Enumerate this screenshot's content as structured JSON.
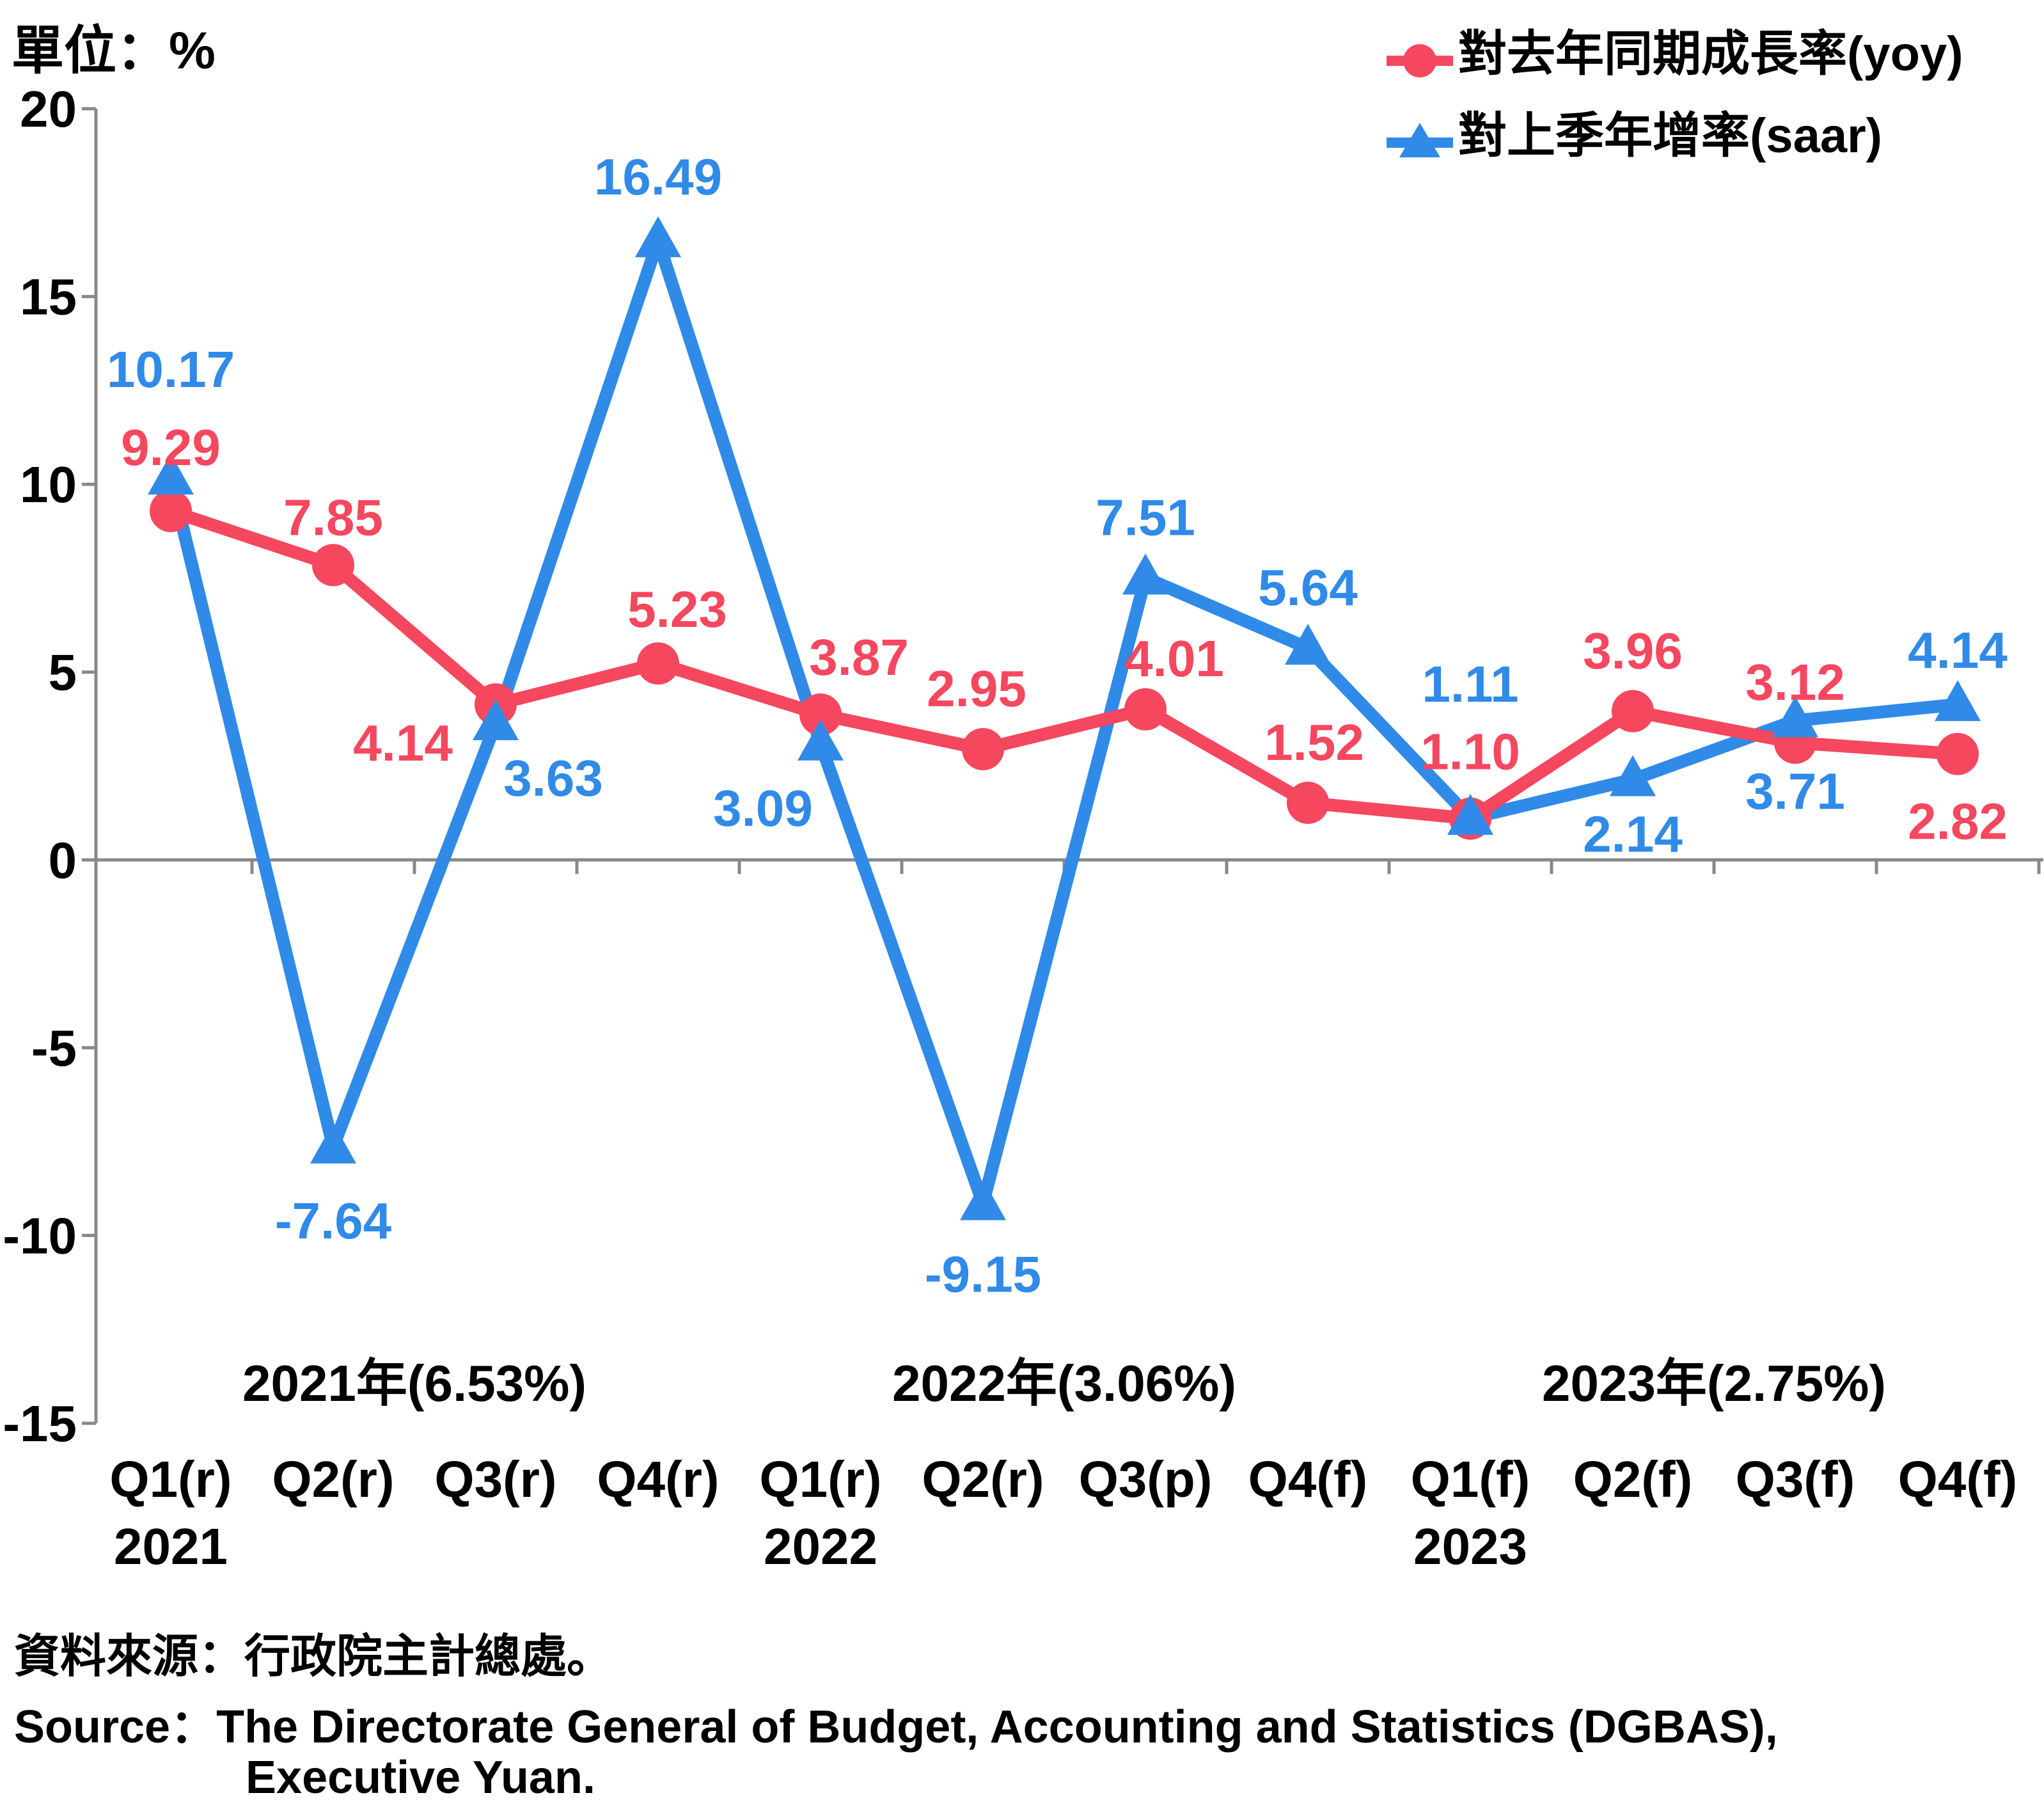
{
  "unit_label": "單位：%",
  "chart_data": {
    "type": "line",
    "categories": [
      "Q1(r)",
      "Q2(r)",
      "Q3(r)",
      "Q4(r)",
      "Q1(r)",
      "Q2(r)",
      "Q3(p)",
      "Q4(f)",
      "Q1(f)",
      "Q2(f)",
      "Q3(f)",
      "Q4(f)"
    ],
    "year_labels": [
      {
        "index": 0,
        "label": "2021"
      },
      {
        "index": 4,
        "label": "2022"
      },
      {
        "index": 8,
        "label": "2023"
      }
    ],
    "annual_labels": [
      "2021年(6.53%)",
      "2022年(3.06%)",
      "2023年(2.75%)"
    ],
    "ylim": [
      -15,
      20
    ],
    "yticks": [
      "-15",
      "-10",
      "-5",
      "0",
      "5",
      "10",
      "15",
      "20"
    ],
    "series": [
      {
        "name": "對去年同期成長率(yoy)",
        "marker": "circle",
        "color": "#f5475e",
        "values": [
          9.29,
          7.85,
          4.14,
          5.23,
          3.87,
          2.95,
          4.01,
          1.52,
          1.1,
          3.96,
          3.12,
          2.82
        ],
        "labels": [
          "9.29",
          "7.85",
          "4.14",
          "5.23",
          "3.87",
          "2.95",
          "4.01",
          "1.52",
          "1.10",
          "3.96",
          "3.12",
          "2.82"
        ]
      },
      {
        "name": "對上季年增率(saar)",
        "marker": "triangle",
        "color": "#2f8ae8",
        "values": [
          10.17,
          -7.64,
          3.63,
          16.49,
          3.09,
          -9.15,
          7.51,
          5.64,
          1.11,
          2.14,
          3.71,
          4.14
        ],
        "labels": [
          "10.17",
          "-7.64",
          "3.63",
          "16.49",
          "3.09",
          "-9.15",
          "7.51",
          "5.64",
          "1.11",
          "2.14",
          "3.71",
          "4.14"
        ]
      }
    ],
    "legend_position": "top-right",
    "grid": false
  },
  "source": {
    "line1": "資料來源：行政院主計總處。",
    "line2": "Source：The Directorate General of Budget, Accounting and Statistics (DGBAS),",
    "line3": "Executive Yuan."
  }
}
